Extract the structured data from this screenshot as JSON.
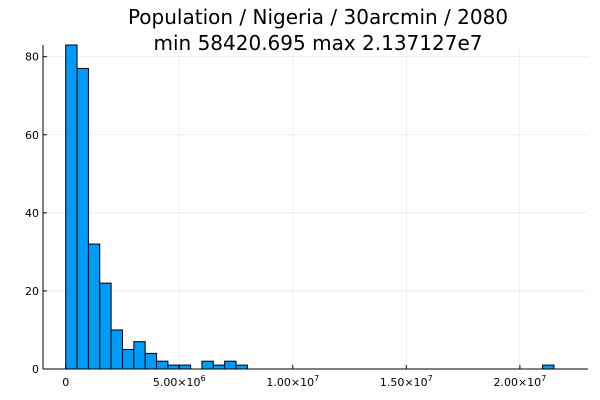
{
  "chart_data": {
    "type": "bar",
    "title_line1": "Population / Nigeria / 30arcmin / 2080",
    "title_line2": "min 58420.695  max 2.137127e7",
    "xlabel": "",
    "ylabel": "",
    "bar_color": "#009AF9",
    "bin_width": 500000,
    "bins": [
      {
        "x0": 0,
        "count": 83
      },
      {
        "x0": 500000,
        "count": 77
      },
      {
        "x0": 1000000,
        "count": 32
      },
      {
        "x0": 1500000,
        "count": 22
      },
      {
        "x0": 2000000,
        "count": 10
      },
      {
        "x0": 2500000,
        "count": 5
      },
      {
        "x0": 3000000,
        "count": 7
      },
      {
        "x0": 3500000,
        "count": 4
      },
      {
        "x0": 4000000,
        "count": 2
      },
      {
        "x0": 4500000,
        "count": 1
      },
      {
        "x0": 5000000,
        "count": 1
      },
      {
        "x0": 5500000,
        "count": 0
      },
      {
        "x0": 6000000,
        "count": 2
      },
      {
        "x0": 6500000,
        "count": 1
      },
      {
        "x0": 7000000,
        "count": 2
      },
      {
        "x0": 7500000,
        "count": 1
      },
      {
        "x0": 21000000,
        "count": 1
      }
    ],
    "xlim": [
      -1000000,
      23000000
    ],
    "ylim": [
      0,
      83
    ],
    "x_ticks": [
      {
        "value": 0,
        "mantissa": "0",
        "exp": ""
      },
      {
        "value": 5000000,
        "mantissa": "5.00×10",
        "exp": "6"
      },
      {
        "value": 10000000,
        "mantissa": "1.00×10",
        "exp": "7"
      },
      {
        "value": 15000000,
        "mantissa": "1.50×10",
        "exp": "7"
      },
      {
        "value": 20000000,
        "mantissa": "2.00×10",
        "exp": "7"
      }
    ],
    "y_ticks": [
      {
        "value": 0,
        "label": "0"
      },
      {
        "value": 20,
        "label": "20"
      },
      {
        "value": 40,
        "label": "40"
      },
      {
        "value": 60,
        "label": "60"
      },
      {
        "value": 80,
        "label": "80"
      }
    ],
    "grid": true,
    "legend": "none"
  }
}
